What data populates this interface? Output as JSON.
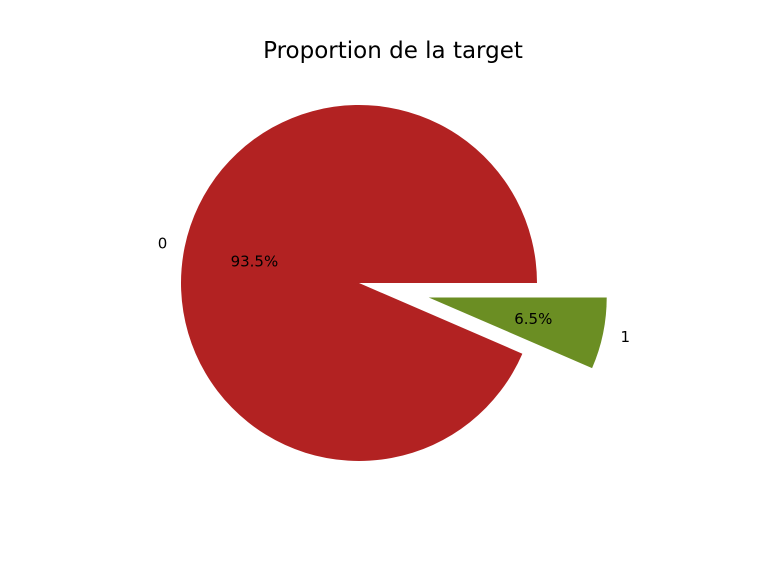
{
  "chart_data": {
    "type": "pie",
    "title": "Proportion de la target",
    "labels": [
      "0",
      "1"
    ],
    "values": [
      93.5,
      6.5
    ],
    "percent_labels": [
      "93.5%",
      "6.5%"
    ],
    "colors": [
      "#b22222",
      "#6b8e23"
    ],
    "explode": [
      0,
      1
    ],
    "start_angle": 0,
    "direction": "counterclockwise",
    "legend": "none"
  }
}
